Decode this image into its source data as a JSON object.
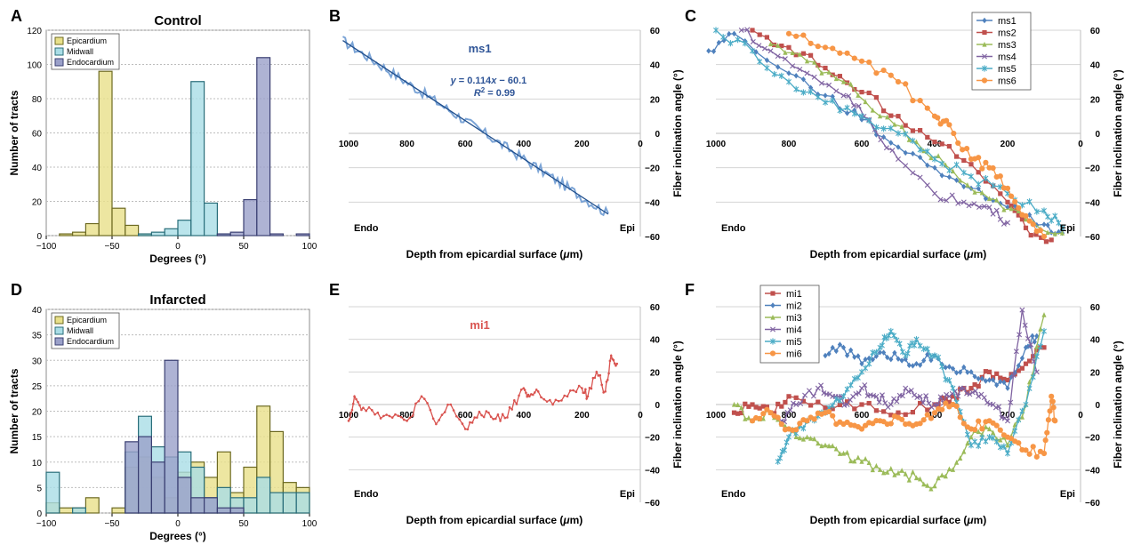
{
  "chart_data": [
    {
      "panel": "A",
      "type": "histogram",
      "title": "Control",
      "xlabel": "Degrees (°)",
      "ylabel": "Number of tracts",
      "xlim": [
        -100,
        100
      ],
      "ylim": [
        0,
        120
      ],
      "xticks": [
        -100,
        -50,
        0,
        50,
        100
      ],
      "yticks": [
        0,
        20,
        40,
        60,
        80,
        100,
        120
      ],
      "bin_edges": [
        -90,
        -80,
        -70,
        -60,
        -50,
        -40,
        -30,
        -20,
        -10,
        0,
        10,
        20,
        30,
        40,
        50,
        60,
        70,
        80,
        90,
        100
      ],
      "legend": "top-left",
      "grid": true,
      "series": [
        {
          "name": "Epicardium",
          "color": "#e8e08a",
          "edge": "#6d6a22",
          "values": [
            1,
            2,
            7,
            96,
            16,
            6,
            1,
            0,
            0,
            0,
            0,
            0,
            0,
            0,
            0,
            0,
            0,
            0,
            0
          ]
        },
        {
          "name": "Midwall",
          "color": "#a9dde6",
          "edge": "#2a6e7a",
          "values": [
            0,
            0,
            0,
            0,
            0,
            0,
            1,
            2,
            4,
            9,
            90,
            19,
            1,
            0,
            0,
            0,
            0,
            0,
            0
          ]
        },
        {
          "name": "Endocardium",
          "color": "#9aa0c9",
          "edge": "#3a3f72",
          "values": [
            0,
            0,
            0,
            0,
            0,
            0,
            0,
            0,
            0,
            0,
            0,
            0,
            1,
            2,
            21,
            104,
            1,
            0,
            1
          ]
        }
      ]
    },
    {
      "panel": "B",
      "type": "line",
      "series_label": "ms1",
      "equation": "y = 0.114x − 60.1",
      "r2": "R² = 0.99",
      "xlabel": "Depth from epicardial surface (μm)",
      "ylabel": "Fiber inclination angle (°)",
      "xlim": [
        1000,
        0
      ],
      "ylim": [
        -60,
        60
      ],
      "xticks": [
        1000,
        800,
        600,
        400,
        200,
        0
      ],
      "yticks": [
        -60,
        -40,
        -20,
        0,
        20,
        40,
        60
      ],
      "corner_left": "Endo",
      "corner_right": "Epi",
      "series": [
        {
          "color": "#7ba4d6",
          "fit": [
            54,
            -47
          ],
          "noise": 3,
          "xrange": [
            1020,
            110
          ]
        }
      ]
    },
    {
      "panel": "C",
      "type": "line",
      "xlabel": "Depth from epicardial surface (μm)",
      "ylabel": "Fiber inclination angle (°)",
      "xlim": [
        1000,
        0
      ],
      "ylim": [
        -60,
        60
      ],
      "xticks": [
        1000,
        800,
        600,
        400,
        200,
        0
      ],
      "yticks": [
        -60,
        -40,
        -20,
        0,
        20,
        40,
        60
      ],
      "corner_left": "Endo",
      "corner_right": "Epi",
      "legend": "top-right",
      "series": [
        {
          "name": "ms1",
          "color": "#4f81bd",
          "marker": "diamond",
          "x": [
            1020,
            950,
            800,
            700,
            600,
            500,
            400,
            300,
            200,
            100,
            50
          ],
          "y": [
            48,
            58,
            35,
            22,
            8,
            -8,
            -20,
            -32,
            -43,
            -53,
            -58
          ]
        },
        {
          "name": "ms2",
          "color": "#c0504d",
          "marker": "square",
          "x": [
            900,
            800,
            700,
            600,
            500,
            400,
            300,
            200,
            150,
            80
          ],
          "y": [
            60,
            50,
            38,
            24,
            10,
            -5,
            -18,
            -40,
            -55,
            -62
          ]
        },
        {
          "name": "ms3",
          "color": "#9bbb59",
          "marker": "triangle",
          "x": [
            850,
            750,
            650,
            550,
            450,
            350,
            250,
            150,
            50
          ],
          "y": [
            52,
            42,
            30,
            10,
            -5,
            -22,
            -38,
            -50,
            -58
          ]
        },
        {
          "name": "ms4",
          "color": "#8064a2",
          "marker": "x",
          "x": [
            930,
            850,
            750,
            650,
            580,
            500,
            400,
            320,
            250,
            200
          ],
          "y": [
            60,
            48,
            35,
            22,
            8,
            -15,
            -35,
            -40,
            -43,
            -52
          ]
        },
        {
          "name": "ms5",
          "color": "#4bacc6",
          "marker": "star",
          "x": [
            1000,
            900,
            800,
            700,
            600,
            500,
            400,
            300,
            200,
            100,
            50
          ],
          "y": [
            60,
            48,
            30,
            18,
            10,
            0,
            -15,
            -25,
            -35,
            -45,
            -55
          ]
        },
        {
          "name": "ms6",
          "color": "#f79646",
          "marker": "circle",
          "x": [
            800,
            700,
            600,
            500,
            400,
            360,
            300,
            250,
            200,
            150,
            100
          ],
          "y": [
            58,
            50,
            42,
            30,
            10,
            5,
            -15,
            -20,
            -32,
            -48,
            -60
          ]
        }
      ]
    },
    {
      "panel": "D",
      "type": "histogram",
      "title": "Infarcted",
      "xlabel": "Degrees (°)",
      "ylabel": "Number of tracts",
      "xlim": [
        -100,
        100
      ],
      "ylim": [
        0,
        40
      ],
      "xticks": [
        -100,
        -50,
        0,
        50,
        100
      ],
      "yticks": [
        0,
        5,
        10,
        15,
        20,
        25,
        30,
        35,
        40
      ],
      "bin_edges": [
        -100,
        -90,
        -80,
        -70,
        -60,
        -50,
        -40,
        -30,
        -20,
        -10,
        0,
        10,
        20,
        30,
        40,
        50,
        60,
        70,
        80,
        90,
        100
      ],
      "legend": "top-left",
      "grid": true,
      "series": [
        {
          "name": "Epicardium",
          "color": "#e8e08a",
          "edge": "#6d6a22",
          "values": [
            2,
            1,
            1,
            3,
            0,
            1,
            9,
            11,
            7,
            3,
            8,
            10,
            7,
            12,
            4,
            9,
            21,
            16,
            6,
            5
          ]
        },
        {
          "name": "Midwall",
          "color": "#a9dde6",
          "edge": "#2a6e7a",
          "values": [
            8,
            0,
            1,
            0,
            0,
            0,
            12,
            19,
            13,
            11,
            12,
            9,
            3,
            5,
            3,
            3,
            7,
            4,
            4,
            4
          ]
        },
        {
          "name": "Endocardium",
          "color": "#9aa0c9",
          "edge": "#3a3f72",
          "values": [
            0,
            0,
            0,
            0,
            0,
            0,
            14,
            15,
            10,
            30,
            7,
            3,
            3,
            1,
            1,
            0,
            0,
            0,
            0,
            0
          ]
        }
      ]
    },
    {
      "panel": "E",
      "type": "line",
      "series_label": "mi1",
      "xlabel": "Depth from epicardial surface (μm)",
      "ylabel": "Fiber inclination angle (°)",
      "xlim": [
        1000,
        0
      ],
      "ylim": [
        -60,
        60
      ],
      "xticks": [
        1000,
        800,
        600,
        400,
        200,
        0
      ],
      "yticks": [
        -60,
        -40,
        -20,
        0,
        20,
        40,
        60
      ],
      "corner_left": "Endo",
      "corner_right": "Epi",
      "series": [
        {
          "color": "#d9534f",
          "marker": "dot",
          "x": [
            1000,
            980,
            950,
            900,
            850,
            800,
            750,
            700,
            650,
            600,
            560,
            520,
            480,
            440,
            400,
            380,
            350,
            300,
            250,
            200,
            180,
            150,
            120,
            100,
            80
          ],
          "y": [
            -10,
            5,
            -2,
            -5,
            -8,
            -10,
            5,
            -12,
            0,
            -15,
            -8,
            -5,
            -10,
            -3,
            10,
            5,
            8,
            0,
            5,
            10,
            5,
            20,
            8,
            30,
            25
          ]
        }
      ]
    },
    {
      "panel": "F",
      "type": "line",
      "xlabel": "Depth from epicardial surface (μm)",
      "ylabel": "Fiber inclination angle (°)",
      "xlim": [
        1000,
        0
      ],
      "ylim": [
        -60,
        60
      ],
      "xticks": [
        1000,
        800,
        600,
        400,
        200,
        0
      ],
      "yticks": [
        -60,
        -40,
        -20,
        0,
        20,
        40,
        60
      ],
      "corner_left": "Endo",
      "corner_right": "Epi",
      "legend": "top-left",
      "series": [
        {
          "name": "mi1",
          "color": "#c0504d",
          "marker": "square",
          "x": [
            950,
            900,
            850,
            800,
            700,
            600,
            500,
            400,
            350,
            300,
            250,
            200,
            150,
            100
          ],
          "y": [
            -5,
            0,
            -5,
            5,
            -2,
            0,
            -5,
            0,
            5,
            10,
            20,
            15,
            25,
            35
          ]
        },
        {
          "name": "mi2",
          "color": "#4f81bd",
          "marker": "diamond",
          "x": [
            700,
            650,
            600,
            550,
            500,
            450,
            400,
            350,
            300,
            250,
            200,
            150,
            120
          ],
          "y": [
            30,
            35,
            25,
            32,
            28,
            25,
            30,
            22,
            20,
            15,
            10,
            35,
            42
          ]
        },
        {
          "name": "mi3",
          "color": "#9bbb59",
          "marker": "triangle",
          "x": [
            950,
            900,
            850,
            800,
            750,
            700,
            650,
            600,
            550,
            500,
            450,
            400,
            350,
            300,
            250,
            200,
            150,
            100
          ],
          "y": [
            0,
            -10,
            -5,
            -15,
            -20,
            -25,
            -30,
            -35,
            -40,
            -42,
            -45,
            -50,
            -40,
            -20,
            -15,
            -25,
            0,
            55
          ]
        },
        {
          "name": "mi4",
          "color": "#8064a2",
          "marker": "x",
          "x": [
            820,
            780,
            720,
            680,
            640,
            600,
            560,
            520,
            480,
            440,
            400,
            360,
            320,
            280,
            240,
            200,
            160,
            120
          ],
          "y": [
            -10,
            0,
            10,
            5,
            0,
            10,
            5,
            0,
            10,
            5,
            0,
            5,
            10,
            5,
            0,
            -10,
            58,
            20
          ]
        },
        {
          "name": "mi5",
          "color": "#4bacc6",
          "marker": "star",
          "x": [
            830,
            800,
            750,
            700,
            650,
            600,
            550,
            520,
            480,
            450,
            400,
            350,
            300,
            250,
            200,
            150,
            100
          ],
          "y": [
            -35,
            -20,
            -10,
            -5,
            5,
            20,
            35,
            45,
            30,
            40,
            30,
            10,
            -25,
            -20,
            -30,
            0,
            45
          ]
        },
        {
          "name": "mi6",
          "color": "#f79646",
          "marker": "circle",
          "x": [
            900,
            850,
            800,
            750,
            700,
            650,
            600,
            550,
            500,
            450,
            400,
            350,
            300,
            250,
            200,
            150,
            100,
            80,
            70
          ],
          "y": [
            -10,
            -5,
            -15,
            -10,
            -5,
            -12,
            -15,
            -10,
            -8,
            -12,
            -5,
            0,
            -15,
            -10,
            -20,
            -28,
            -30,
            5,
            -10
          ]
        }
      ]
    }
  ]
}
